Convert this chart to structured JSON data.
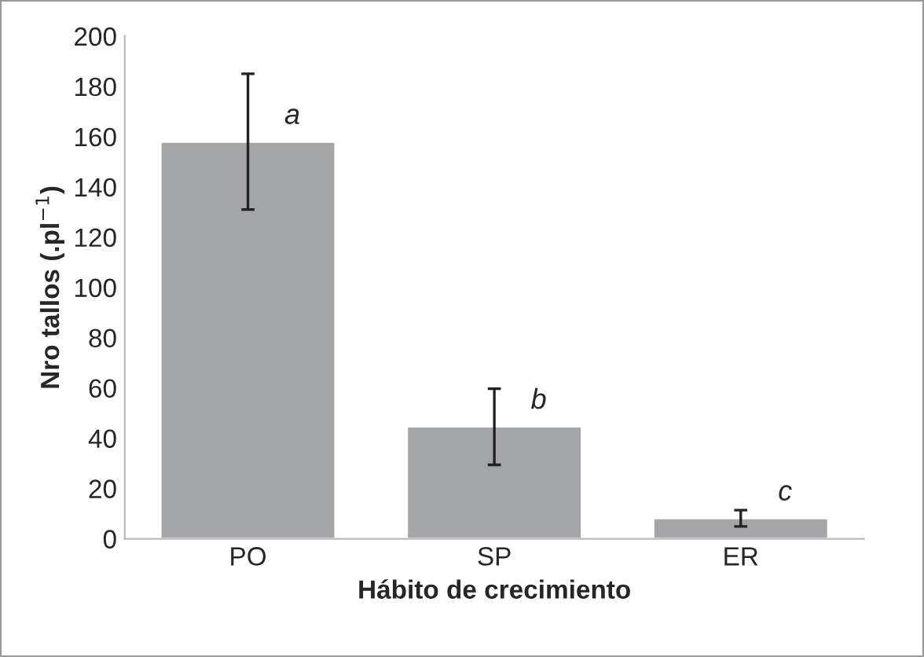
{
  "chart_data": {
    "type": "bar",
    "xlabel": "Hábito de crecimiento",
    "ylabel": "Nro tallos (.pl$^{−1}$)",
    "categories": [
      "PO",
      "SP",
      "ER"
    ],
    "values": [
      158,
      44.7,
      8.2
    ],
    "errors": [
      [
        131,
        185
      ],
      [
        29.4,
        59.7
      ],
      [
        4.9,
        11.4
      ]
    ],
    "color": "#a4a5a9",
    "ylim": [
      0,
      200
    ],
    "yticks": [
      0,
      20,
      40,
      60,
      80,
      100,
      120,
      140,
      160,
      180,
      200
    ],
    "annotations": [
      "a",
      "b",
      "c"
    ]
  }
}
